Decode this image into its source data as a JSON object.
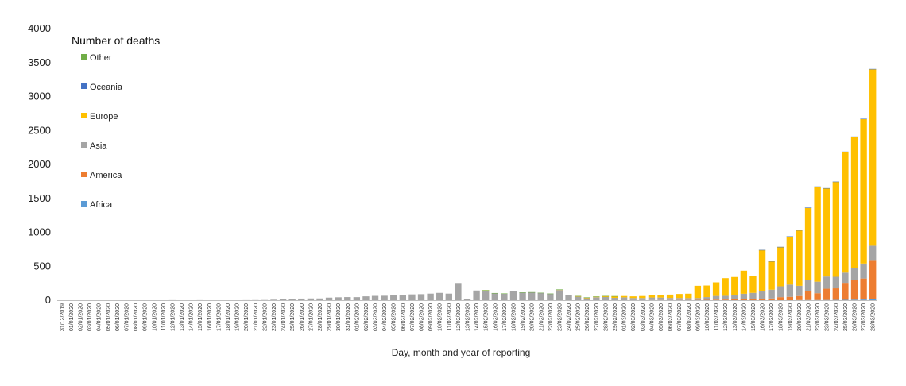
{
  "chart_data": {
    "type": "bar",
    "stacked": true,
    "title": "",
    "legend_title": "Number of deaths",
    "legend_position": "top-left",
    "xlabel": "Day, month and year of reporting",
    "ylabel": "",
    "ylim": [
      0,
      4000
    ],
    "yticks": [
      0,
      500,
      1000,
      1500,
      2000,
      2500,
      3000,
      3500,
      4000
    ],
    "grid": false,
    "legend_order": [
      "Other",
      "Oceania",
      "Europe",
      "Asia",
      "America",
      "Africa"
    ],
    "categories": [
      "31/12/2019",
      "01/01/2020",
      "02/01/2020",
      "03/01/2020",
      "04/01/2020",
      "05/01/2020",
      "06/01/2020",
      "07/01/2020",
      "08/01/2020",
      "09/01/2020",
      "10/01/2020",
      "11/01/2020",
      "12/01/2020",
      "13/01/2020",
      "14/01/2020",
      "15/01/2020",
      "16/01/2020",
      "17/01/2020",
      "18/01/2020",
      "19/01/2020",
      "20/01/2020",
      "21/01/2020",
      "22/01/2020",
      "23/01/2020",
      "24/01/2020",
      "25/01/2020",
      "26/01/2020",
      "27/01/2020",
      "28/01/2020",
      "29/01/2020",
      "30/01/2020",
      "31/01/2020",
      "01/02/2020",
      "02/02/2020",
      "03/02/2020",
      "04/02/2020",
      "05/02/2020",
      "06/02/2020",
      "07/02/2020",
      "08/02/2020",
      "09/02/2020",
      "10/02/2020",
      "11/02/2020",
      "12/02/2020",
      "13/02/2020",
      "14/02/2020",
      "15/02/2020",
      "16/02/2020",
      "17/02/2020",
      "18/02/2020",
      "19/02/2020",
      "20/02/2020",
      "21/02/2020",
      "22/02/2020",
      "23/02/2020",
      "24/02/2020",
      "25/02/2020",
      "26/02/2020",
      "27/02/2020",
      "28/02/2020",
      "29/02/2020",
      "01/03/2020",
      "02/03/2020",
      "03/03/2020",
      "04/03/2020",
      "05/03/2020",
      "06/03/2020",
      "07/03/2020",
      "08/03/2020",
      "09/03/2020",
      "10/03/2020",
      "11/03/2020",
      "12/03/2020",
      "13/03/2020",
      "14/03/2020",
      "15/03/2020",
      "16/03/2020",
      "17/03/2020",
      "18/03/2020",
      "19/03/2020",
      "20/03/2020",
      "21/03/2020",
      "22/03/2020",
      "23/03/2020",
      "24/03/2020",
      "25/03/2020",
      "26/03/2020",
      "27/03/2020",
      "28/03/2020"
    ],
    "series": [
      {
        "name": "Africa",
        "color": "#5b9bd5",
        "values": [
          0,
          0,
          0,
          0,
          0,
          0,
          0,
          0,
          0,
          0,
          0,
          0,
          0,
          0,
          0,
          0,
          0,
          0,
          0,
          0,
          0,
          0,
          0,
          0,
          0,
          0,
          0,
          0,
          0,
          0,
          0,
          0,
          0,
          0,
          0,
          0,
          0,
          0,
          0,
          0,
          0,
          0,
          0,
          0,
          0,
          0,
          0,
          0,
          0,
          0,
          0,
          0,
          0,
          0,
          0,
          0,
          0,
          0,
          0,
          0,
          0,
          0,
          0,
          0,
          0,
          0,
          0,
          0,
          0,
          0,
          0,
          0,
          0,
          0,
          0,
          0,
          0,
          0,
          0,
          0,
          2,
          3,
          3,
          4,
          5,
          6,
          8,
          10,
          12
        ]
      },
      {
        "name": "America",
        "color": "#ed7d31",
        "values": [
          0,
          0,
          0,
          0,
          0,
          0,
          0,
          0,
          0,
          0,
          0,
          0,
          0,
          0,
          0,
          0,
          0,
          0,
          0,
          0,
          0,
          0,
          0,
          0,
          0,
          0,
          0,
          0,
          0,
          0,
          0,
          0,
          0,
          0,
          0,
          0,
          0,
          0,
          0,
          0,
          0,
          0,
          0,
          0,
          0,
          0,
          0,
          0,
          0,
          0,
          0,
          0,
          0,
          0,
          0,
          0,
          0,
          0,
          0,
          0,
          0,
          0,
          1,
          1,
          2,
          3,
          3,
          4,
          4,
          5,
          6,
          8,
          10,
          12,
          15,
          18,
          20,
          25,
          45,
          50,
          60,
          130,
          100,
          165,
          170,
          250,
          290,
          310,
          580
        ]
      },
      {
        "name": "Asia",
        "color": "#a5a5a5",
        "values": [
          0,
          0,
          0,
          0,
          0,
          0,
          0,
          0,
          0,
          0,
          0,
          0,
          1,
          0,
          0,
          1,
          0,
          0,
          0,
          0,
          1,
          2,
          3,
          8,
          16,
          15,
          24,
          26,
          26,
          38,
          43,
          46,
          45,
          57,
          64,
          66,
          73,
          73,
          86,
          89,
          97,
          108,
          97,
          254,
          13,
          143,
          142,
          105,
          98,
          136,
          114,
          118,
          109,
          97,
          150,
          71,
          52,
          29,
          44,
          47,
          35,
          42,
          31,
          31,
          38,
          36,
          30,
          28,
          27,
          27,
          40,
          55,
          55,
          60,
          80,
          90,
          120,
          130,
          160,
          180,
          150,
          170,
          170,
          180,
          170,
          150,
          180,
          220,
          210
        ]
      },
      {
        "name": "Europe",
        "color": "#ffc000",
        "values": [
          0,
          0,
          0,
          0,
          0,
          0,
          0,
          0,
          0,
          0,
          0,
          0,
          0,
          0,
          0,
          0,
          0,
          0,
          0,
          0,
          0,
          0,
          0,
          0,
          0,
          0,
          0,
          0,
          0,
          0,
          0,
          0,
          0,
          0,
          0,
          0,
          0,
          0,
          0,
          0,
          0,
          0,
          0,
          0,
          0,
          0,
          5,
          0,
          0,
          0,
          0,
          0,
          0,
          0,
          8,
          8,
          10,
          12,
          10,
          15,
          25,
          20,
          25,
          30,
          35,
          40,
          50,
          60,
          65,
          180,
          170,
          200,
          260,
          270,
          340,
          250,
          600,
          420,
          580,
          710,
          820,
          1060,
          1400,
          1300,
          1400,
          1780,
          1930,
          2130,
          2600
        ]
      },
      {
        "name": "Oceania",
        "color": "#4472c4",
        "values": [
          0,
          0,
          0,
          0,
          0,
          0,
          0,
          0,
          0,
          0,
          0,
          0,
          0,
          0,
          0,
          0,
          0,
          0,
          0,
          0,
          0,
          0,
          0,
          0,
          0,
          0,
          0,
          0,
          0,
          0,
          0,
          0,
          0,
          0,
          0,
          0,
          0,
          0,
          0,
          0,
          0,
          0,
          0,
          0,
          0,
          0,
          0,
          0,
          0,
          0,
          0,
          0,
          0,
          0,
          0,
          0,
          0,
          0,
          0,
          0,
          0,
          0,
          0,
          0,
          0,
          0,
          0,
          0,
          0,
          0,
          0,
          0,
          0,
          0,
          0,
          0,
          1,
          1,
          1,
          1,
          1,
          1,
          2,
          2,
          2,
          3,
          3,
          3,
          4
        ]
      },
      {
        "name": "Other",
        "color": "#70ad47",
        "values": [
          0,
          0,
          0,
          0,
          0,
          0,
          0,
          0,
          0,
          0,
          0,
          0,
          0,
          0,
          0,
          0,
          0,
          0,
          0,
          0,
          0,
          0,
          0,
          0,
          0,
          0,
          0,
          0,
          0,
          0,
          0,
          0,
          0,
          0,
          0,
          0,
          0,
          0,
          0,
          0,
          0,
          0,
          0,
          0,
          0,
          0,
          1,
          1,
          2,
          1,
          1,
          1,
          1,
          1,
          1,
          1,
          1,
          1,
          1,
          1,
          1,
          0,
          0,
          0,
          0,
          0,
          0,
          0,
          0,
          0,
          0,
          0,
          0,
          0,
          0,
          0,
          0,
          0,
          0,
          0,
          0,
          0,
          0,
          0,
          0,
          0,
          0,
          0,
          0
        ]
      }
    ]
  }
}
